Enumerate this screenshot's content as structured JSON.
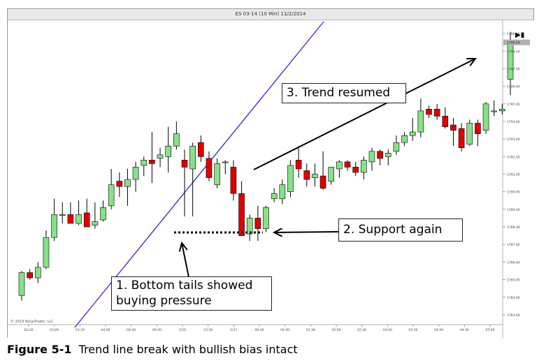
{
  "window": {
    "title": "ES 03-14 (10 Min) 11/2/2014"
  },
  "caption": {
    "label": "Figure 5-1",
    "text": "Trend line break with bullish bias intact"
  },
  "callouts": {
    "trend_resumed": "3. Trend resumed",
    "support_again": "2. Support again",
    "bottom_tails_line1": "1. Bottom tails showed",
    "bottom_tails_line2": "buying pressure"
  },
  "copyright": "© 2014 NinjaTrader, LLC",
  "icons": {
    "scroll_end": "skip-to-end-icon"
  },
  "colors": {
    "bull": "#88e088",
    "bear": "#e00000",
    "trendline": "#2a2ad0",
    "price_marker": "#b0b0b0"
  },
  "chart_data": {
    "type": "candlestick",
    "title": "ES 03-14 (10 Min) 11/2/2014",
    "ylim": [
      1782.6,
      1799.6
    ],
    "yticks": [
      "1799.00",
      "1798.00",
      "1797.00",
      "1796.00",
      "1795.00",
      "1794.00",
      "1793.00",
      "1792.00",
      "1791.00",
      "1790.00",
      "1789.00",
      "1788.00",
      "1787.00",
      "1786.00",
      "1785.00",
      "1784.00",
      "1783.00"
    ],
    "xticks": [
      "02:30",
      "03:00",
      "03:30",
      "04:00",
      "04:30",
      "05:00",
      "2/10",
      "23:30",
      "2/11",
      "00:30",
      "01:00",
      "01:30",
      "02:00",
      "02:30",
      "03:00",
      "03:30",
      "04:00",
      "04:30",
      "05:00"
    ],
    "last_price": "1798.50",
    "candles": [
      {
        "o": 1784.1,
        "h": 1785.5,
        "l": 1783.8,
        "c": 1785.4
      },
      {
        "o": 1785.4,
        "h": 1785.6,
        "l": 1785.0,
        "c": 1785.1
      },
      {
        "o": 1785.1,
        "h": 1786.0,
        "l": 1784.8,
        "c": 1785.7
      },
      {
        "o": 1785.7,
        "h": 1787.8,
        "l": 1785.6,
        "c": 1787.4
      },
      {
        "o": 1787.4,
        "h": 1789.6,
        "l": 1787.2,
        "c": 1788.7
      },
      {
        "o": 1788.7,
        "h": 1789.4,
        "l": 1788.2,
        "c": 1788.7
      },
      {
        "o": 1788.7,
        "h": 1789.4,
        "l": 1788.3,
        "c": 1788.2
      },
      {
        "o": 1788.2,
        "h": 1789.5,
        "l": 1788.1,
        "c": 1788.7
      },
      {
        "o": 1788.8,
        "h": 1789.6,
        "l": 1788.1,
        "c": 1788.0
      },
      {
        "o": 1788.1,
        "h": 1789.4,
        "l": 1787.9,
        "c": 1788.3
      },
      {
        "o": 1788.4,
        "h": 1789.5,
        "l": 1788.3,
        "c": 1789.1
      },
      {
        "o": 1789.2,
        "h": 1791.3,
        "l": 1789.0,
        "c": 1790.4
      },
      {
        "o": 1790.6,
        "h": 1791.1,
        "l": 1789.7,
        "c": 1790.3
      },
      {
        "o": 1790.3,
        "h": 1791.3,
        "l": 1789.2,
        "c": 1790.7
      },
      {
        "o": 1790.7,
        "h": 1791.7,
        "l": 1790.0,
        "c": 1791.4
      },
      {
        "o": 1791.5,
        "h": 1792.0,
        "l": 1790.9,
        "c": 1791.8
      },
      {
        "o": 1791.8,
        "h": 1793.4,
        "l": 1790.5,
        "c": 1791.6
      },
      {
        "o": 1791.9,
        "h": 1792.5,
        "l": 1791.4,
        "c": 1792.1
      },
      {
        "o": 1792.0,
        "h": 1793.7,
        "l": 1791.1,
        "c": 1792.6
      },
      {
        "o": 1792.6,
        "h": 1794.0,
        "l": 1792.4,
        "c": 1793.3
      },
      {
        "o": 1791.8,
        "h": 1792.4,
        "l": 1788.6,
        "c": 1791.4
      },
      {
        "o": 1791.3,
        "h": 1792.8,
        "l": 1788.6,
        "c": 1792.6
      },
      {
        "o": 1792.8,
        "h": 1793.2,
        "l": 1791.7,
        "c": 1792.0
      },
      {
        "o": 1791.9,
        "h": 1792.3,
        "l": 1790.6,
        "c": 1790.8
      },
      {
        "o": 1790.4,
        "h": 1791.9,
        "l": 1790.2,
        "c": 1791.6
      },
      {
        "o": 1791.7,
        "h": 1791.8,
        "l": 1791.0,
        "c": 1791.7
      },
      {
        "o": 1791.4,
        "h": 1791.8,
        "l": 1789.5,
        "c": 1789.9
      },
      {
        "o": 1789.9,
        "h": 1790.6,
        "l": 1787.5,
        "c": 1787.5
      },
      {
        "o": 1787.6,
        "h": 1788.7,
        "l": 1787.2,
        "c": 1788.5
      },
      {
        "o": 1788.5,
        "h": 1789.2,
        "l": 1787.2,
        "c": 1787.9
      },
      {
        "o": 1787.9,
        "h": 1789.2,
        "l": 1787.7,
        "c": 1789.1
      },
      {
        "o": 1789.6,
        "h": 1790.2,
        "l": 1789.4,
        "c": 1789.9
      },
      {
        "o": 1789.6,
        "h": 1790.7,
        "l": 1789.3,
        "c": 1790.4
      },
      {
        "o": 1790.0,
        "h": 1791.8,
        "l": 1789.7,
        "c": 1791.5
      },
      {
        "o": 1791.8,
        "h": 1792.6,
        "l": 1790.8,
        "c": 1791.3
      },
      {
        "o": 1791.2,
        "h": 1791.6,
        "l": 1790.3,
        "c": 1790.7
      },
      {
        "o": 1790.8,
        "h": 1791.6,
        "l": 1790.3,
        "c": 1791.0
      },
      {
        "o": 1790.9,
        "h": 1792.3,
        "l": 1790.1,
        "c": 1790.2
      },
      {
        "o": 1790.6,
        "h": 1791.4,
        "l": 1790.4,
        "c": 1791.4
      },
      {
        "o": 1791.3,
        "h": 1791.8,
        "l": 1790.8,
        "c": 1791.7
      },
      {
        "o": 1791.7,
        "h": 1791.8,
        "l": 1791.2,
        "c": 1791.4
      },
      {
        "o": 1791.4,
        "h": 1791.7,
        "l": 1790.9,
        "c": 1791.1
      },
      {
        "o": 1791.1,
        "h": 1792.0,
        "l": 1790.7,
        "c": 1791.8
      },
      {
        "o": 1791.7,
        "h": 1792.5,
        "l": 1791.2,
        "c": 1792.3
      },
      {
        "o": 1792.3,
        "h": 1792.4,
        "l": 1791.5,
        "c": 1791.9
      },
      {
        "o": 1792.0,
        "h": 1792.4,
        "l": 1791.5,
        "c": 1792.2
      },
      {
        "o": 1792.3,
        "h": 1793.2,
        "l": 1792.1,
        "c": 1792.8
      },
      {
        "o": 1792.8,
        "h": 1793.4,
        "l": 1792.6,
        "c": 1793.2
      },
      {
        "o": 1793.2,
        "h": 1794.2,
        "l": 1792.9,
        "c": 1793.4
      },
      {
        "o": 1793.4,
        "h": 1795.3,
        "l": 1793.1,
        "c": 1794.6
      },
      {
        "o": 1794.7,
        "h": 1794.9,
        "l": 1794.2,
        "c": 1794.4
      },
      {
        "o": 1794.7,
        "h": 1795.0,
        "l": 1794.1,
        "c": 1794.3
      },
      {
        "o": 1794.3,
        "h": 1794.8,
        "l": 1793.6,
        "c": 1793.7
      },
      {
        "o": 1793.8,
        "h": 1794.2,
        "l": 1792.6,
        "c": 1793.5
      },
      {
        "o": 1793.6,
        "h": 1793.9,
        "l": 1792.3,
        "c": 1792.5
      },
      {
        "o": 1792.7,
        "h": 1794.1,
        "l": 1792.6,
        "c": 1793.9
      },
      {
        "o": 1793.9,
        "h": 1794.1,
        "l": 1792.6,
        "c": 1793.3
      },
      {
        "o": 1793.5,
        "h": 1795.1,
        "l": 1793.3,
        "c": 1795.0
      },
      {
        "o": 1794.6,
        "h": 1795.2,
        "l": 1794.3,
        "c": 1794.6
      },
      {
        "o": 1794.6,
        "h": 1795.0,
        "l": 1794.4,
        "c": 1794.7
      },
      {
        "o": 1796.4,
        "h": 1799.1,
        "l": 1795.5,
        "c": 1798.6
      }
    ]
  }
}
